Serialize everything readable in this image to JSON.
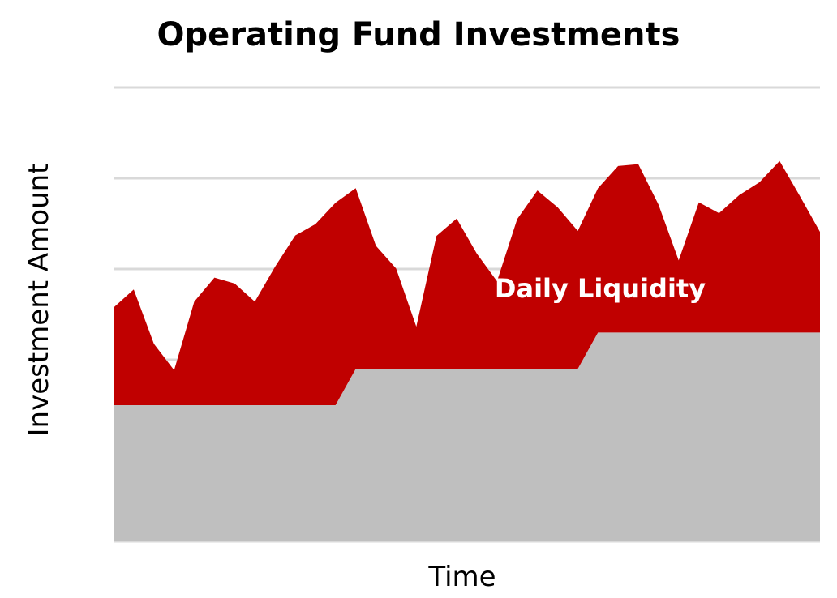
{
  "chart_data": {
    "type": "area",
    "stacked": true,
    "title": "Operating Fund Investments",
    "xlabel": "Time",
    "ylabel": "Investment Amount",
    "ylim": [
      0,
      100
    ],
    "grid": true,
    "gridlines": [
      0,
      20,
      40,
      60,
      80,
      100
    ],
    "x": [
      0,
      1,
      2,
      3,
      4,
      5,
      6,
      7,
      8,
      9,
      10,
      11,
      12,
      13,
      14,
      15,
      16,
      17,
      18,
      19,
      20,
      21,
      22,
      23,
      24,
      25,
      26,
      27,
      28,
      29,
      30,
      31,
      32,
      33,
      34,
      35
    ],
    "series": [
      {
        "name": "",
        "color": "#bfbfbf",
        "values": [
          30,
          30,
          30,
          30,
          30,
          30,
          30,
          30,
          30,
          30,
          30,
          30,
          38,
          38,
          38,
          38,
          38,
          38,
          38,
          38,
          38,
          38,
          38,
          38,
          46,
          46,
          46,
          46,
          46,
          46,
          46,
          46,
          46,
          46,
          46,
          46
        ]
      },
      {
        "name": "Daily Liquidity",
        "color": "#c00000",
        "values": [
          21.5,
          25.5,
          13.5,
          7.7,
          22.8,
          28.1,
          26.8,
          22.8,
          30.5,
          37.4,
          39.9,
          44.6,
          39.8,
          27.1,
          22.1,
          9.3,
          29.3,
          33.1,
          25.4,
          19.3,
          33.0,
          39.3,
          35.6,
          30.4,
          31.8,
          36.7,
          37.1,
          28.2,
          15.9,
          28.7,
          26.3,
          30.3,
          33.1,
          37.8,
          30.1,
          22.2
        ]
      }
    ]
  }
}
